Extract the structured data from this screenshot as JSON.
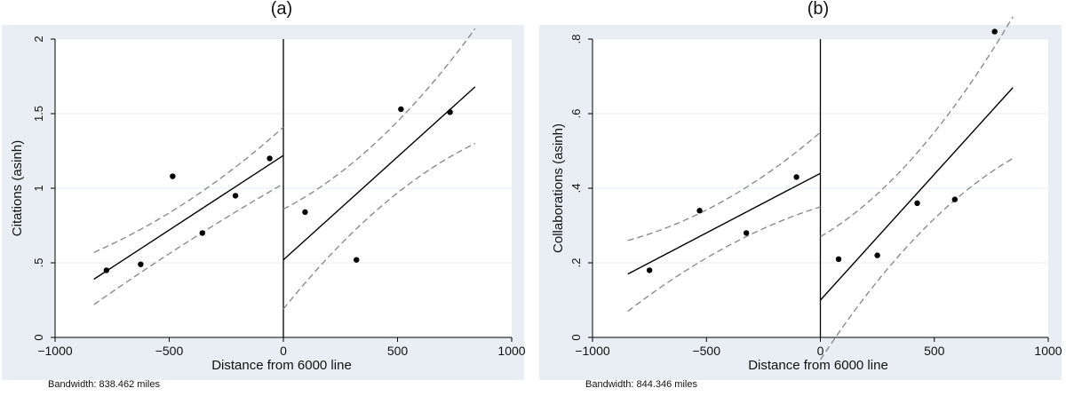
{
  "panels": [
    {
      "label": "(a)",
      "xlabel": "Distance from 6000 line",
      "ylabel": "Citations (asinh)",
      "note": "Bandwidth: 838.462 miles"
    },
    {
      "label": "(b)",
      "xlabel": "Distance from 6000 line",
      "ylabel": "Collaborations (asinh)",
      "note": "Bandwidth: 844.346 miles"
    }
  ],
  "chart_data": [
    {
      "type": "scatter",
      "title": "(a)",
      "xlabel": "Distance from 6000 line",
      "ylabel": "Citations (asinh)",
      "xlim": [
        -1000,
        1000
      ],
      "ylim": [
        0,
        2
      ],
      "xticks": [
        -1000,
        -500,
        0,
        500,
        1000
      ],
      "xtick_labels": [
        "−1000",
        "−500",
        "0",
        "500",
        "1000"
      ],
      "yticks": [
        0,
        0.5,
        1,
        1.5,
        2
      ],
      "ytick_labels": [
        "0",
        ".5",
        "1",
        "1.5",
        "2"
      ],
      "grid": true,
      "cutoff": 0,
      "points": [
        {
          "x": -775,
          "y": 0.45
        },
        {
          "x": -625,
          "y": 0.49
        },
        {
          "x": -485,
          "y": 1.08
        },
        {
          "x": -355,
          "y": 0.7
        },
        {
          "x": -210,
          "y": 0.95
        },
        {
          "x": -60,
          "y": 1.2
        },
        {
          "x": 95,
          "y": 0.84
        },
        {
          "x": 320,
          "y": 0.52
        },
        {
          "x": 515,
          "y": 1.53
        },
        {
          "x": 730,
          "y": 1.51
        }
      ],
      "fit_left": {
        "x": [
          -830,
          0
        ],
        "y": [
          0.39,
          1.22
        ]
      },
      "fit_right": {
        "x": [
          0,
          840
        ],
        "y": [
          0.52,
          1.68
        ]
      },
      "ci_left_upper": {
        "x": [
          -830,
          -400,
          0
        ],
        "y": [
          0.57,
          0.86,
          1.41
        ]
      },
      "ci_left_lower": {
        "x": [
          -830,
          -400,
          0
        ],
        "y": [
          0.22,
          0.68,
          1.03
        ]
      },
      "ci_right_upper": {
        "x": [
          0,
          420,
          840
        ],
        "y": [
          0.86,
          1.19,
          2.07
        ]
      },
      "ci_right_lower": {
        "x": [
          0,
          420,
          840
        ],
        "y": [
          0.19,
          0.99,
          1.3
        ]
      },
      "bandwidth_note": "Bandwidth: 838.462 miles"
    },
    {
      "type": "scatter",
      "title": "(b)",
      "xlabel": "Distance from 6000 line",
      "ylabel": "Collaborations (asinh)",
      "xlim": [
        -1000,
        1000
      ],
      "ylim": [
        0,
        0.8
      ],
      "xticks": [
        -1000,
        -500,
        0,
        500,
        1000
      ],
      "xtick_labels": [
        "−1000",
        "−500",
        "0",
        "500",
        "1000"
      ],
      "yticks": [
        0,
        0.2,
        0.4,
        0.6,
        0.8
      ],
      "ytick_labels": [
        "0",
        ".2",
        ".4",
        ".6",
        ".8"
      ],
      "grid": true,
      "cutoff": 0,
      "points": [
        {
          "x": -750,
          "y": 0.18
        },
        {
          "x": -530,
          "y": 0.34
        },
        {
          "x": -325,
          "y": 0.28
        },
        {
          "x": -105,
          "y": 0.43
        },
        {
          "x": 80,
          "y": 0.21
        },
        {
          "x": 250,
          "y": 0.22
        },
        {
          "x": 425,
          "y": 0.36
        },
        {
          "x": 590,
          "y": 0.37
        },
        {
          "x": 765,
          "y": 0.82
        }
      ],
      "fit_left": {
        "x": [
          -845,
          0
        ],
        "y": [
          0.17,
          0.44
        ]
      },
      "fit_right": {
        "x": [
          0,
          845
        ],
        "y": [
          0.1,
          0.67
        ]
      },
      "ci_left_upper": {
        "x": [
          -845,
          -420,
          0
        ],
        "y": [
          0.26,
          0.33,
          0.55
        ]
      },
      "ci_left_lower": {
        "x": [
          -845,
          -420,
          0
        ],
        "y": [
          0.07,
          0.27,
          0.35
        ]
      },
      "ci_right_upper": {
        "x": [
          0,
          420,
          845
        ],
        "y": [
          0.27,
          0.42,
          0.86
        ]
      },
      "ci_right_lower": {
        "x": [
          0,
          420,
          845
        ],
        "y": [
          -0.06,
          0.33,
          0.48
        ]
      },
      "bandwidth_note": "Bandwidth: 844.346 miles"
    }
  ]
}
